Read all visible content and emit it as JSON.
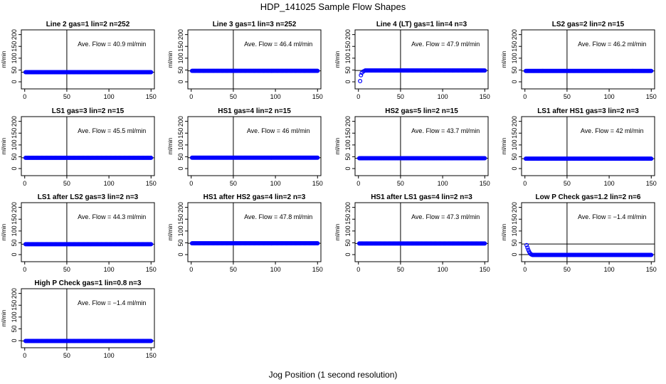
{
  "figure": {
    "title": "HDP_141025  Sample Flow Shapes",
    "xlabel": "Jog Position (1 second resolution)"
  },
  "chart_data": [
    {
      "type": "scatter",
      "title": "Line 2 gas=1 lin=2 n=252",
      "ylabel": "ml/min",
      "annotation": "Ave. Flow =  40.9  ml/min",
      "avg": 40.9,
      "x": [
        1,
        150
      ],
      "y_const": 40.9,
      "xlim": [
        -4,
        154
      ],
      "ylim": [
        -30,
        220
      ],
      "xticks": [
        0,
        50,
        100,
        150
      ],
      "yticks": [
        0,
        50,
        100,
        150,
        200
      ],
      "vline": 50,
      "hline": [
        40.9
      ],
      "point_color": "#0000ff"
    },
    {
      "type": "scatter",
      "title": "Line 3 gas=1 lin=3 n=252",
      "ylabel": "ml/min",
      "annotation": "Ave. Flow =  46.4  ml/min",
      "avg": 46.4,
      "x": [
        1,
        150
      ],
      "y_const": 46.4,
      "xlim": [
        -4,
        154
      ],
      "ylim": [
        -30,
        220
      ],
      "xticks": [
        0,
        50,
        100,
        150
      ],
      "yticks": [
        0,
        50,
        100,
        150,
        200
      ],
      "vline": 50,
      "hline": [
        46.4
      ],
      "point_color": "#0000ff"
    },
    {
      "type": "scatter",
      "title": "Line 4 (LT) gas=1 lin=4 n=3",
      "ylabel": "ml/min",
      "annotation": "Ave. Flow =  47.9  ml/min",
      "avg": 47.9,
      "x": [
        1,
        150
      ],
      "y_const": 47.9,
      "early_points": [
        [
          2,
          3
        ],
        [
          3,
          28
        ],
        [
          4,
          38
        ],
        [
          6,
          44
        ],
        [
          8,
          48
        ]
      ],
      "xlim": [
        -4,
        154
      ],
      "ylim": [
        -30,
        220
      ],
      "xticks": [
        0,
        50,
        100,
        150
      ],
      "yticks": [
        0,
        50,
        100,
        150,
        200
      ],
      "vline": 50,
      "hline": [
        47.9
      ],
      "point_color": "#0000ff"
    },
    {
      "type": "scatter",
      "title": "LS2 gas=2 lin=2 n=15",
      "ylabel": "ml/min",
      "annotation": "Ave. Flow =  46.2  ml/min",
      "avg": 46.2,
      "x": [
        1,
        150
      ],
      "y_const": 46.2,
      "xlim": [
        -4,
        154
      ],
      "ylim": [
        -30,
        220
      ],
      "xticks": [
        0,
        50,
        100,
        150
      ],
      "yticks": [
        0,
        50,
        100,
        150,
        200
      ],
      "vline": 50,
      "hline": [
        46.2
      ],
      "point_color": "#0000ff"
    },
    {
      "type": "scatter",
      "title": "LS1 gas=3 lin=2 n=15",
      "ylabel": "ml/min",
      "annotation": "Ave. Flow =  45.5  ml/min",
      "avg": 45.5,
      "x": [
        1,
        150
      ],
      "y_const": 45.5,
      "xlim": [
        -4,
        154
      ],
      "ylim": [
        -30,
        220
      ],
      "xticks": [
        0,
        50,
        100,
        150
      ],
      "yticks": [
        0,
        50,
        100,
        150,
        200
      ],
      "vline": 50,
      "hline": [
        45.5
      ],
      "point_color": "#0000ff"
    },
    {
      "type": "scatter",
      "title": "HS1 gas=4 lin=2 n=15",
      "ylabel": "ml/min",
      "annotation": "Ave. Flow =  46  ml/min",
      "avg": 46,
      "x": [
        1,
        150
      ],
      "y_const": 46,
      "xlim": [
        -4,
        154
      ],
      "ylim": [
        -30,
        220
      ],
      "xticks": [
        0,
        50,
        100,
        150
      ],
      "yticks": [
        0,
        50,
        100,
        150,
        200
      ],
      "vline": 50,
      "hline": [
        46
      ],
      "point_color": "#0000ff"
    },
    {
      "type": "scatter",
      "title": "HS2 gas=5 lin=2 n=15",
      "ylabel": "ml/min",
      "annotation": "Ave. Flow =  43.7  ml/min",
      "avg": 43.7,
      "x": [
        1,
        150
      ],
      "y_const": 43.7,
      "xlim": [
        -4,
        154
      ],
      "ylim": [
        -30,
        220
      ],
      "xticks": [
        0,
        50,
        100,
        150
      ],
      "yticks": [
        0,
        50,
        100,
        150,
        200
      ],
      "vline": 50,
      "hline": [
        43.7
      ],
      "point_color": "#0000ff"
    },
    {
      "type": "scatter",
      "title": "LS1 after HS1 gas=3 lin=2 n=3",
      "ylabel": "ml/min",
      "annotation": "Ave. Flow =  42  ml/min",
      "avg": 42,
      "x": [
        1,
        150
      ],
      "y_const": 42,
      "xlim": [
        -4,
        154
      ],
      "ylim": [
        -30,
        220
      ],
      "xticks": [
        0,
        50,
        100,
        150
      ],
      "yticks": [
        0,
        50,
        100,
        150,
        200
      ],
      "vline": 50,
      "hline": [
        42
      ],
      "point_color": "#0000ff"
    },
    {
      "type": "scatter",
      "title": "LS1 after LS2 gas=3 lin=2 n=3",
      "ylabel": "ml/min",
      "annotation": "Ave. Flow =  44.3  ml/min",
      "avg": 44.3,
      "x": [
        1,
        150
      ],
      "y_const": 44.3,
      "xlim": [
        -4,
        154
      ],
      "ylim": [
        -30,
        220
      ],
      "xticks": [
        0,
        50,
        100,
        150
      ],
      "yticks": [
        0,
        50,
        100,
        150,
        200
      ],
      "vline": 50,
      "hline": [
        44.3
      ],
      "point_color": "#0000ff"
    },
    {
      "type": "scatter",
      "title": "HS1 after HS2 gas=4 lin=2 n=3",
      "ylabel": "ml/min",
      "annotation": "Ave. Flow =  47.8  ml/min",
      "avg": 47.8,
      "x": [
        1,
        150
      ],
      "y_const": 47.8,
      "xlim": [
        -4,
        154
      ],
      "ylim": [
        -30,
        220
      ],
      "xticks": [
        0,
        50,
        100,
        150
      ],
      "yticks": [
        0,
        50,
        100,
        150,
        200
      ],
      "vline": 50,
      "hline": [
        47.8
      ],
      "point_color": "#0000ff"
    },
    {
      "type": "scatter",
      "title": "HS1 after LS1 gas=4 lin=2 n=3",
      "ylabel": "ml/min",
      "annotation": "Ave. Flow =  47.3  ml/min",
      "avg": 47.3,
      "x": [
        1,
        150
      ],
      "y_const": 47.3,
      "xlim": [
        -4,
        154
      ],
      "ylim": [
        -30,
        220
      ],
      "xticks": [
        0,
        50,
        100,
        150
      ],
      "yticks": [
        0,
        50,
        100,
        150,
        200
      ],
      "vline": 50,
      "hline": [
        47.3
      ],
      "point_color": "#0000ff"
    },
    {
      "type": "scatter",
      "title": "Low P Check gas=1.2 lin=2 n=6",
      "ylabel": "ml/min",
      "annotation": "Ave. Flow =  −1.4  ml/min",
      "avg": -1.4,
      "x": [
        1,
        150
      ],
      "y_const": -1.4,
      "early_points": [
        [
          2,
          40
        ],
        [
          3,
          30
        ],
        [
          4,
          20
        ],
        [
          5,
          12
        ],
        [
          6,
          6
        ],
        [
          7,
          2
        ],
        [
          8,
          0
        ]
      ],
      "xlim": [
        -4,
        154
      ],
      "ylim": [
        -30,
        220
      ],
      "xticks": [
        0,
        50,
        100,
        150
      ],
      "yticks": [
        0,
        50,
        100,
        150,
        200
      ],
      "vline": 50,
      "hline": [
        0,
        45
      ],
      "point_color": "#0000ff"
    },
    {
      "type": "scatter",
      "title": "High P Check gas=1 lin=0.8 n=3",
      "ylabel": "ml/min",
      "annotation": "Ave. Flow =  −1.4  ml/min",
      "avg": -1.4,
      "x": [
        1,
        150
      ],
      "y_const": -1.4,
      "xlim": [
        -4,
        154
      ],
      "ylim": [
        -30,
        220
      ],
      "xticks": [
        0,
        50,
        100,
        150
      ],
      "yticks": [
        0,
        50,
        100,
        150,
        200
      ],
      "vline": 50,
      "hline": [
        -1.4
      ],
      "point_color": "#0000ff"
    }
  ]
}
